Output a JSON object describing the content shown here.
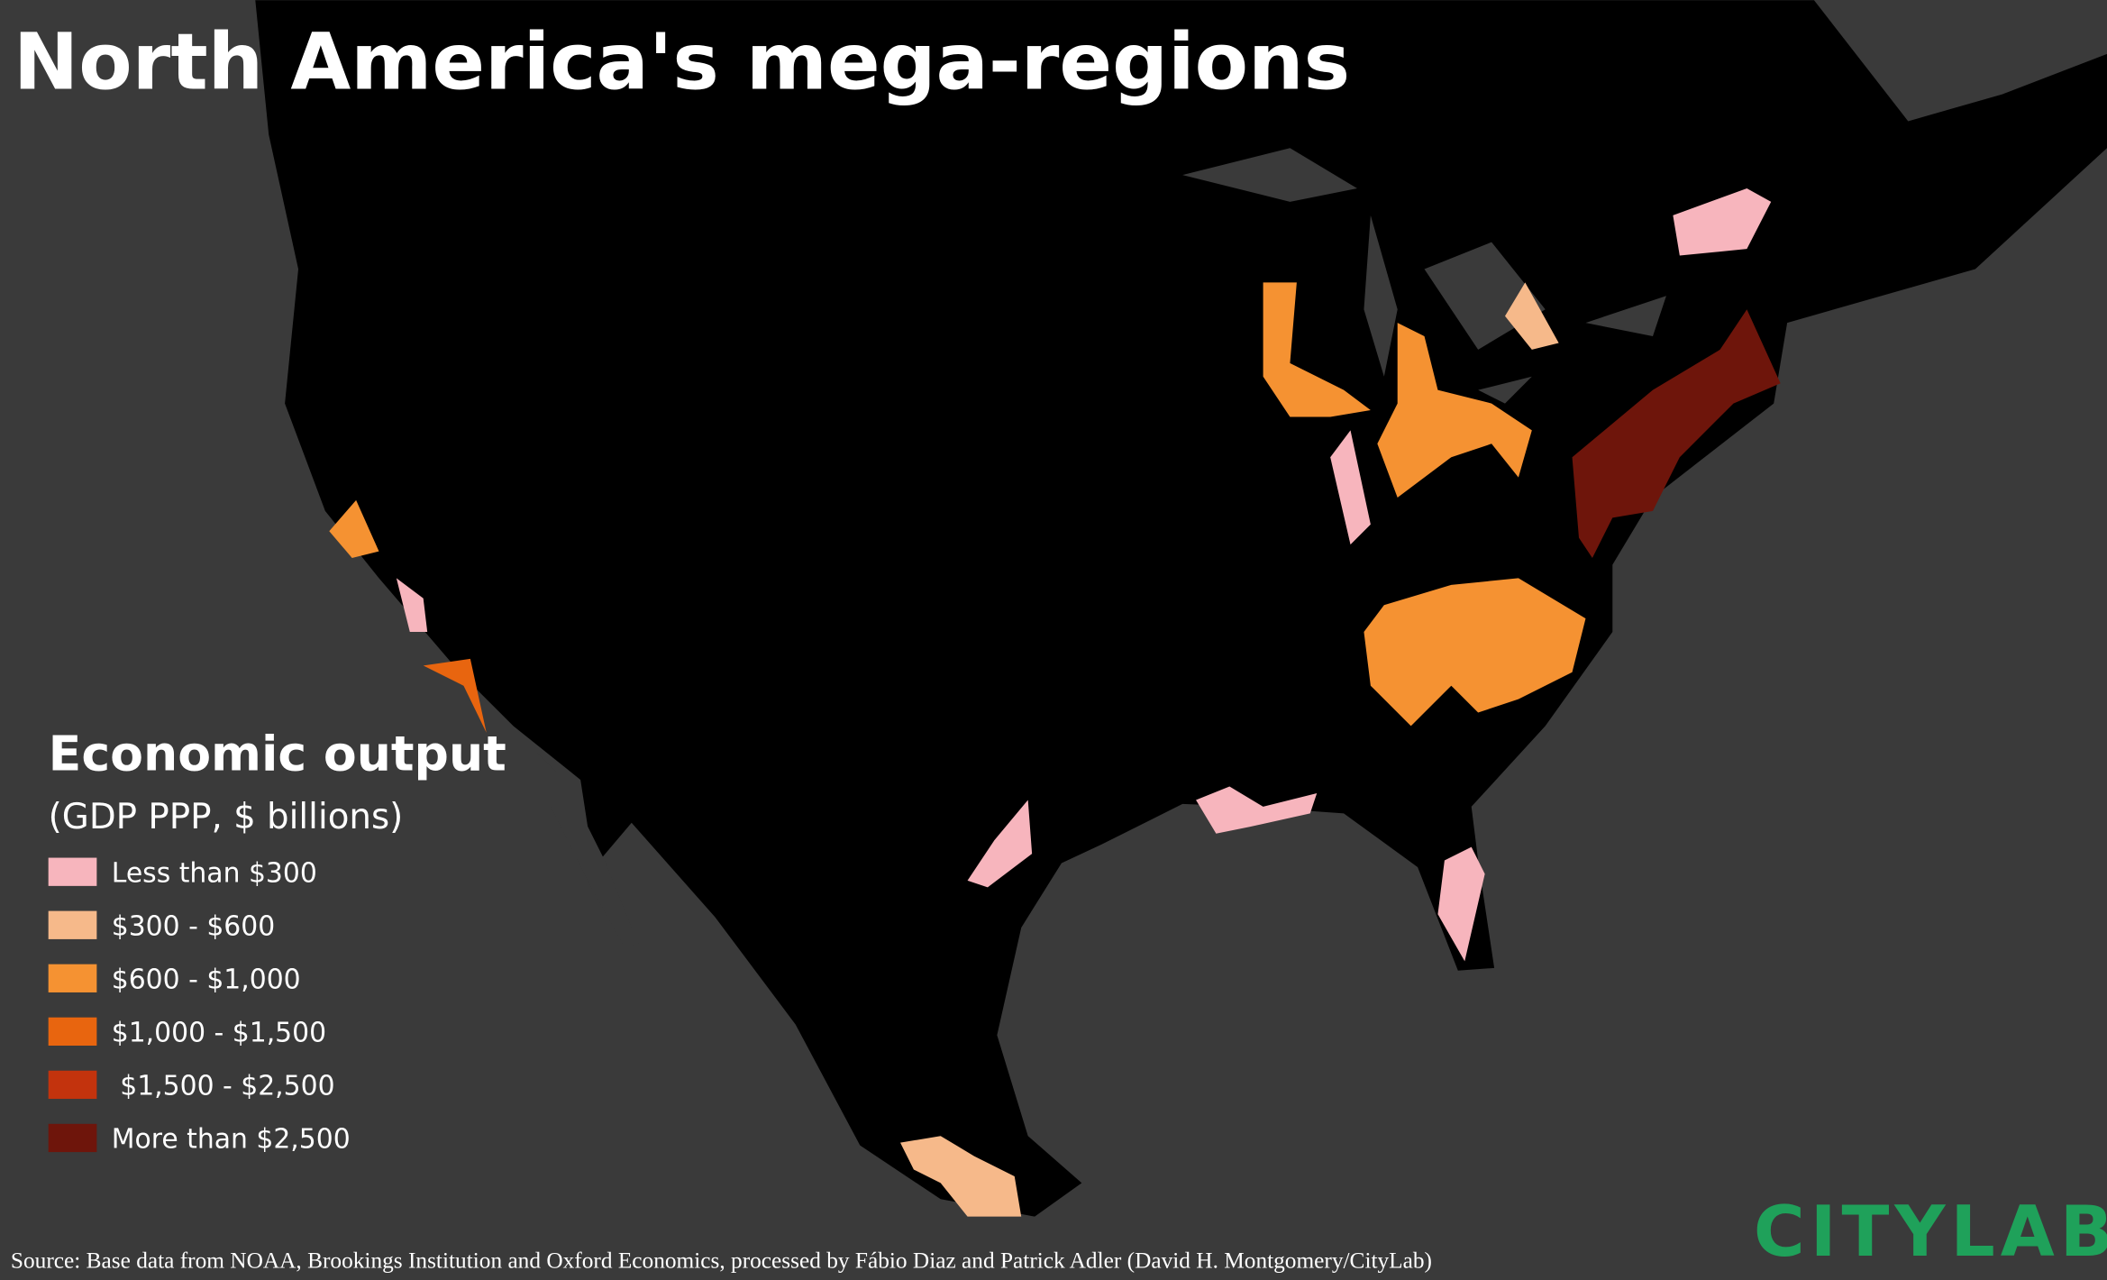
{
  "title": "North America's mega-regions",
  "legend": {
    "title": "Economic output",
    "subtitle": "(GDP PPP, $ billions)",
    "items": [
      {
        "label": "Less than $300",
        "color": "#f7b5bd"
      },
      {
        "label": "$300 - $600",
        "color": "#f6b98a"
      },
      {
        "label": "$600 - $1,000",
        "color": "#f59232"
      },
      {
        "label": "$1,000 - $1,500",
        "color": "#e8650f"
      },
      {
        "label": " $1,500 - $2,500",
        "color": "#c3330d"
      },
      {
        "label": "More than $2,500",
        "color": "#6e150b"
      }
    ]
  },
  "source": "Source: Base data from NOAA, Brookings Institution and Oxford Economics, processed by Fábio Diaz and Patrick Adler (David H. Montgomery/CityLab)",
  "logo": "CITYLAB"
}
